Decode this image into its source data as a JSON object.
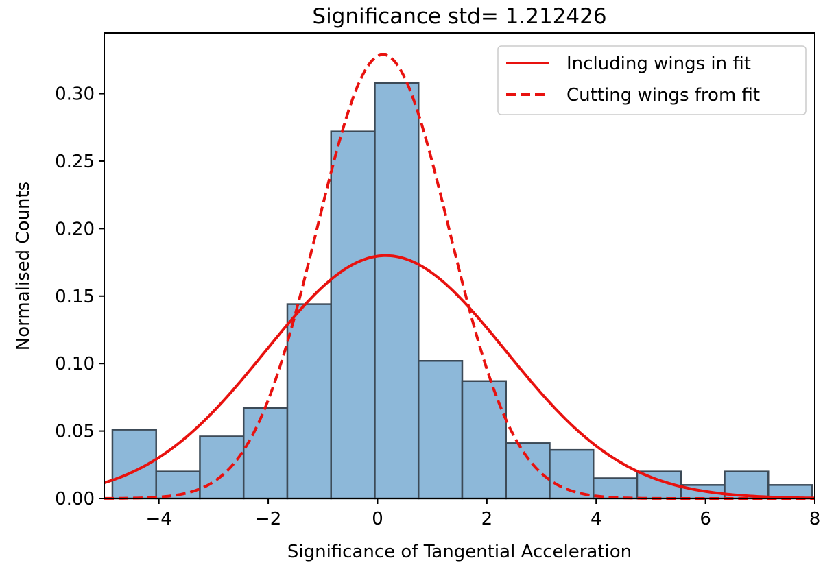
{
  "chart_data": {
    "type": "bar",
    "title": "Significance std= 1.212426",
    "xlabel": "Significance of Tangential Acceleration",
    "ylabel": "Normalised Counts",
    "xlim": [
      -5.0,
      8.0
    ],
    "ylim": [
      0.0,
      0.345
    ],
    "xticks": [
      -4,
      -2,
      0,
      2,
      4,
      6,
      8
    ],
    "xtick_labels": [
      "−4",
      "−2",
      "0",
      "2",
      "4",
      "6",
      "8"
    ],
    "yticks": [
      0.0,
      0.05,
      0.1,
      0.15,
      0.2,
      0.25,
      0.3
    ],
    "ytick_labels": [
      "0.00",
      "0.05",
      "0.10",
      "0.15",
      "0.20",
      "0.25",
      "0.30"
    ],
    "histogram": {
      "bin_edges": [
        -4.85,
        -4.05,
        -3.25,
        -2.45,
        -1.65,
        -0.85,
        -0.05,
        0.75,
        1.55,
        2.35,
        3.15,
        3.95,
        4.75,
        5.55,
        6.35,
        7.15,
        7.95
      ],
      "values": [
        0.051,
        0.02,
        0.046,
        0.067,
        0.144,
        0.272,
        0.308,
        0.102,
        0.087,
        0.041,
        0.036,
        0.015,
        0.02,
        0.01,
        0.02,
        0.01
      ],
      "color": "#8db8d9",
      "edge_color": "#3c4a57"
    },
    "series": [
      {
        "name": "Including wings in fit",
        "style": "solid",
        "mean": 0.15,
        "std": 2.2,
        "amplitude": 0.18,
        "color": "#e8120f"
      },
      {
        "name": "Cutting wings from fit",
        "style": "dashed",
        "mean": 0.1,
        "std": 1.21,
        "amplitude": 0.329,
        "color": "#e8120f"
      }
    ],
    "legend": {
      "position": "top-right"
    }
  }
}
